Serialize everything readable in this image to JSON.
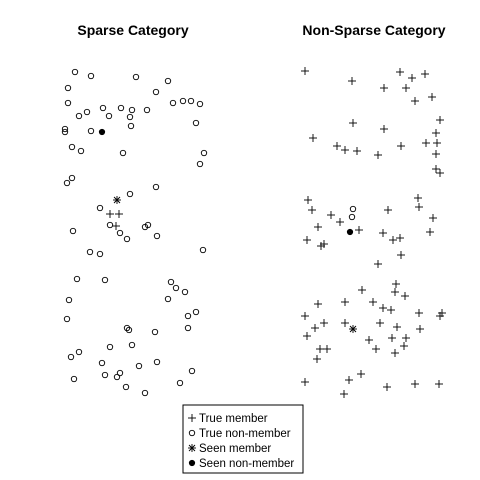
{
  "panels": [
    {
      "title": "Sparse Category",
      "true_non_members": [
        [
          75,
          72
        ],
        [
          91,
          76
        ],
        [
          136,
          77
        ],
        [
          168,
          81
        ],
        [
          68,
          88
        ],
        [
          156,
          92
        ],
        [
          68,
          103
        ],
        [
          103,
          108
        ],
        [
          183,
          101
        ],
        [
          191,
          101
        ],
        [
          200,
          104
        ],
        [
          121,
          108
        ],
        [
          132,
          110
        ],
        [
          147,
          110
        ],
        [
          173,
          103
        ],
        [
          79,
          116
        ],
        [
          87,
          112
        ],
        [
          109,
          116
        ],
        [
          130,
          117
        ],
        [
          196,
          123
        ],
        [
          65,
          129
        ],
        [
          65,
          132
        ],
        [
          91,
          131
        ],
        [
          131,
          126
        ],
        [
          72,
          147
        ],
        [
          81,
          151
        ],
        [
          123,
          153
        ],
        [
          204,
          153
        ],
        [
          200,
          164
        ],
        [
          72,
          178
        ],
        [
          67,
          183
        ],
        [
          156,
          187
        ]
      ],
      "true_members": [],
      "seen_members": [],
      "seen_non_members": [
        [
          102,
          132
        ]
      ]
    },
    {
      "title": "",
      "true_non_members": [
        [
          130,
          194
        ],
        [
          100,
          208
        ],
        [
          110,
          225
        ],
        [
          148,
          225
        ],
        [
          145,
          227
        ],
        [
          120,
          233
        ],
        [
          73,
          231
        ],
        [
          127,
          239
        ],
        [
          157,
          236
        ],
        [
          90,
          252
        ],
        [
          100,
          254
        ],
        [
          203,
          250
        ]
      ],
      "true_members": [
        [
          110,
          214
        ],
        [
          119,
          214
        ],
        [
          116,
          226
        ]
      ],
      "seen_members": [
        [
          117,
          200
        ]
      ],
      "seen_non_members": []
    },
    {
      "title": "",
      "true_non_members": [
        [
          77,
          279
        ],
        [
          105,
          280
        ],
        [
          171,
          282
        ],
        [
          176,
          288
        ],
        [
          185,
          292
        ],
        [
          69,
          300
        ],
        [
          168,
          299
        ],
        [
          196,
          312
        ],
        [
          188,
          316
        ],
        [
          67,
          319
        ],
        [
          127,
          328
        ],
        [
          129,
          330
        ],
        [
          155,
          332
        ],
        [
          188,
          328
        ],
        [
          110,
          347
        ],
        [
          132,
          345
        ],
        [
          79,
          352
        ],
        [
          71,
          357
        ],
        [
          102,
          363
        ],
        [
          157,
          362
        ],
        [
          139,
          366
        ],
        [
          105,
          375
        ],
        [
          117,
          377
        ],
        [
          120,
          373
        ],
        [
          192,
          371
        ],
        [
          74,
          379
        ],
        [
          126,
          387
        ],
        [
          145,
          393
        ],
        [
          180,
          383
        ]
      ],
      "true_members": [],
      "seen_members": [],
      "seen_non_members": []
    },
    {
      "title": "Non-Sparse Category",
      "true_non_members": [],
      "true_members": [
        [
          305,
          71
        ],
        [
          352,
          81
        ],
        [
          400,
          72
        ],
        [
          412,
          78
        ],
        [
          425,
          74
        ],
        [
          384,
          88
        ],
        [
          406,
          88
        ],
        [
          415,
          101
        ],
        [
          432,
          97
        ],
        [
          353,
          123
        ],
        [
          384,
          129
        ],
        [
          440,
          120
        ],
        [
          313,
          138
        ],
        [
          436,
          133
        ],
        [
          437,
          143
        ],
        [
          337,
          146
        ],
        [
          345,
          150
        ],
        [
          357,
          151
        ],
        [
          378,
          155
        ],
        [
          401,
          146
        ],
        [
          426,
          143
        ],
        [
          436,
          154
        ],
        [
          436,
          169
        ],
        [
          440,
          173
        ]
      ],
      "seen_members": [],
      "seen_non_members": []
    },
    {
      "title": "",
      "true_non_members": [
        [
          353,
          209
        ],
        [
          352,
          217
        ]
      ],
      "true_members": [
        [
          308,
          200
        ],
        [
          312,
          210
        ],
        [
          418,
          198
        ],
        [
          331,
          215
        ],
        [
          388,
          210
        ],
        [
          340,
          222
        ],
        [
          419,
          207
        ],
        [
          433,
          218
        ],
        [
          318,
          227
        ],
        [
          359,
          230
        ],
        [
          383,
          233
        ],
        [
          307,
          240
        ],
        [
          400,
          238
        ],
        [
          324,
          244
        ],
        [
          321,
          246
        ],
        [
          393,
          240
        ],
        [
          378,
          264
        ],
        [
          401,
          255
        ],
        [
          430,
          232
        ]
      ],
      "seen_members": [],
      "seen_non_members": [
        [
          350,
          232
        ]
      ]
    },
    {
      "title": "",
      "true_non_members": [],
      "true_members": [
        [
          396,
          284
        ],
        [
          362,
          290
        ],
        [
          395,
          292
        ],
        [
          345,
          302
        ],
        [
          373,
          302
        ],
        [
          405,
          296
        ],
        [
          318,
          304
        ],
        [
          383,
          308
        ],
        [
          391,
          310
        ],
        [
          442,
          313
        ],
        [
          305,
          316
        ],
        [
          419,
          313
        ],
        [
          440,
          316
        ],
        [
          345,
          323
        ],
        [
          324,
          323
        ],
        [
          315,
          328
        ],
        [
          380,
          323
        ],
        [
          397,
          327
        ],
        [
          307,
          336
        ],
        [
          420,
          329
        ],
        [
          369,
          340
        ],
        [
          392,
          338
        ],
        [
          406,
          338
        ],
        [
          376,
          349
        ],
        [
          404,
          346
        ],
        [
          395,
          353
        ],
        [
          320,
          349
        ],
        [
          327,
          349
        ],
        [
          317,
          359
        ],
        [
          361,
          374
        ],
        [
          349,
          380
        ],
        [
          305,
          382
        ],
        [
          387,
          387
        ],
        [
          415,
          384
        ],
        [
          439,
          384
        ],
        [
          344,
          394
        ]
      ],
      "seen_members": [
        [
          353,
          329
        ]
      ],
      "seen_non_members": []
    }
  ],
  "legend": {
    "items": [
      {
        "symbol": "plus",
        "label": "True member"
      },
      {
        "symbol": "circle",
        "label": "True non-member"
      },
      {
        "symbol": "asterisk",
        "label": "Seen member"
      },
      {
        "symbol": "filled-circle",
        "label": "Seen non-member"
      }
    ]
  }
}
